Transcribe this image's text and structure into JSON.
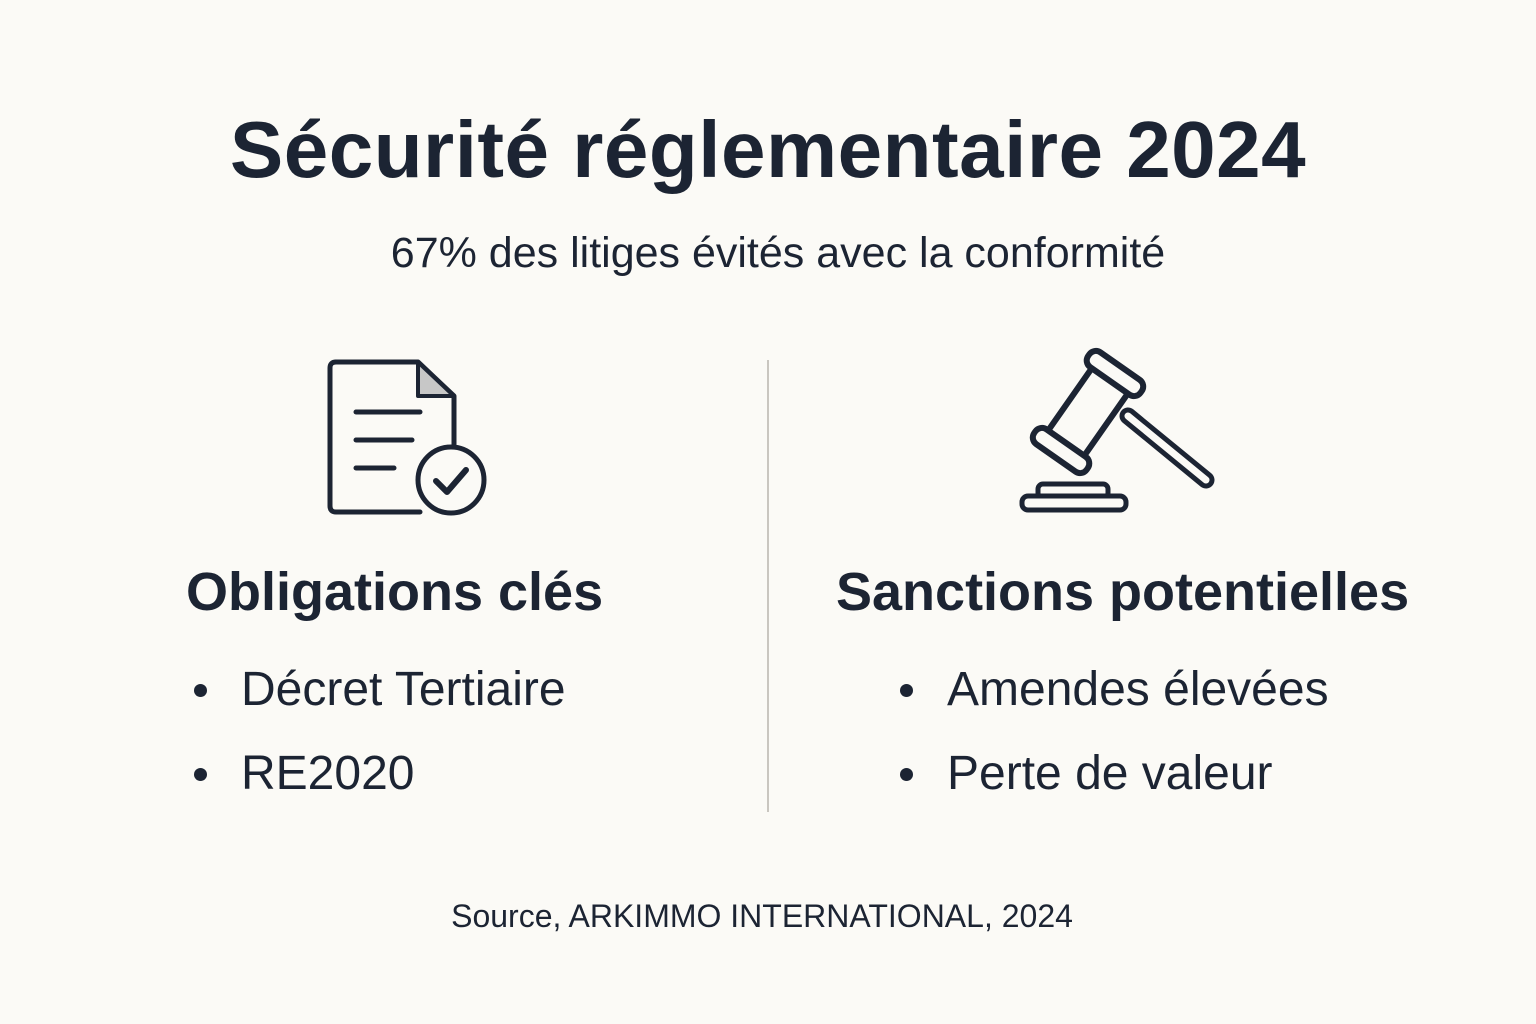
{
  "title": "Sécurité réglementaire 2024",
  "subtitle": "67% des litiges évités avec la conformité",
  "left_column": {
    "icon": "document-check-icon",
    "heading": "Obligations clés",
    "items": [
      "Décret Tertiaire",
      "RE2020"
    ]
  },
  "right_column": {
    "icon": "gavel-icon",
    "heading": "Sanctions potentielles",
    "items": [
      "Amendes élevées",
      "Perte de valeur"
    ]
  },
  "source": "Source, ARKIMMO INTERNATIONAL, 2024",
  "colors": {
    "background": "#fbfaf6",
    "text": "#1c2433",
    "divider": "#c9c6c0"
  }
}
